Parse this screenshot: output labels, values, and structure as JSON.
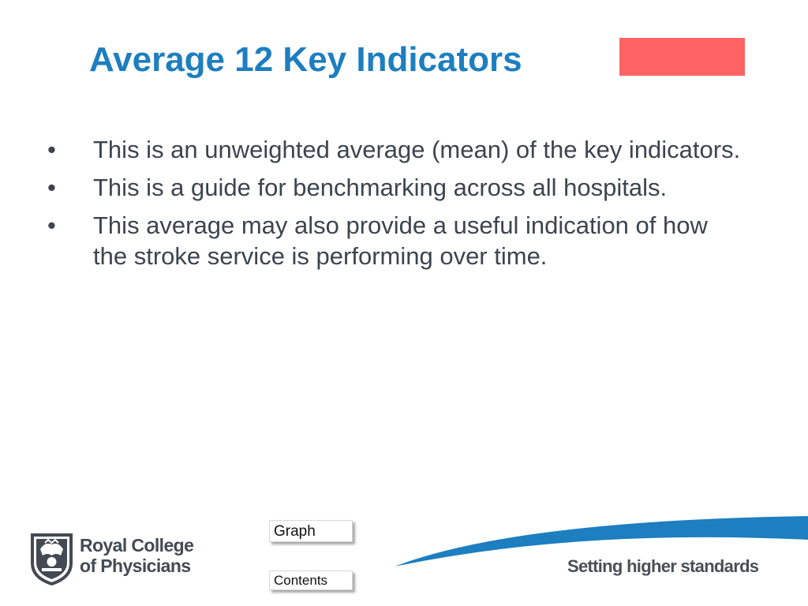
{
  "slide": {
    "title": "Average 12 Key Indicators",
    "status_color": "#ff6363",
    "bullets": [
      "This is an unweighted average (mean) of the key indicators.",
      "This is a guide for benchmarking across all hospitals.",
      "This average may also provide a useful indication of how the stroke service is performing over time."
    ],
    "bullet_glyph": "•"
  },
  "navigation": {
    "graph_label": "Graph",
    "contents_label": "Contents"
  },
  "footer": {
    "logo_line1": "Royal College",
    "logo_line2": "of Physicians",
    "tagline": "Setting higher standards",
    "brand_color": "#1d7ec0",
    "logo_icon": "rcp-crest-icon"
  }
}
